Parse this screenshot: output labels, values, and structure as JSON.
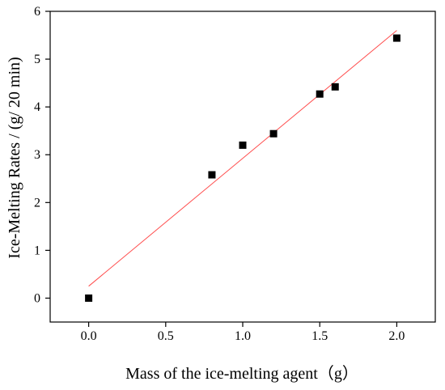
{
  "chart_data": {
    "type": "scatter",
    "xlabel": "Mass of the ice-melting agent（g）",
    "ylabel": "Ice-Melting Rates / (g/ 20 min)",
    "xlim": [
      -0.25,
      2.25
    ],
    "ylim": [
      -0.5,
      6
    ],
    "x_ticks": [
      0.0,
      0.5,
      1.0,
      1.5,
      2.0
    ],
    "x_tick_labels": [
      "0.0",
      "0.5",
      "1.0",
      "1.5",
      "2.0"
    ],
    "y_ticks": [
      0,
      1,
      2,
      3,
      4,
      5,
      6
    ],
    "y_tick_labels": [
      "0",
      "1",
      "2",
      "3",
      "4",
      "5",
      "6"
    ],
    "grid": false,
    "legend": "none",
    "series": [
      {
        "marker": "square",
        "color": "#000000",
        "x": [
          0.0,
          0.8,
          1.0,
          1.2,
          1.5,
          1.6,
          2.0
        ],
        "y": [
          0.0,
          2.58,
          3.2,
          3.44,
          4.27,
          4.42,
          5.44
        ]
      }
    ],
    "fit_line": {
      "type": "linear",
      "color": "#ff4d4d",
      "x": [
        0.0,
        2.0
      ],
      "y": [
        0.25,
        5.6
      ]
    }
  }
}
